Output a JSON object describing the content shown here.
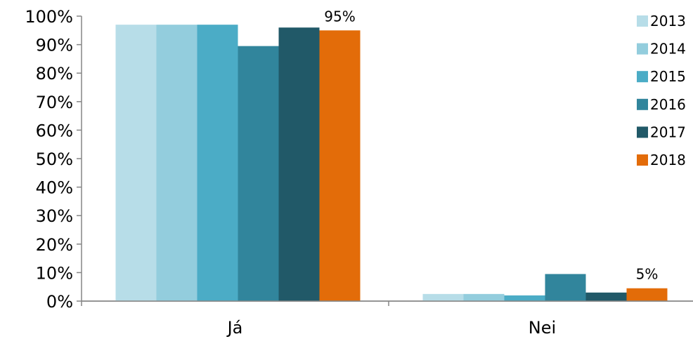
{
  "chart_data": {
    "type": "bar",
    "categories": [
      "Já",
      "Nei"
    ],
    "series": [
      {
        "name": "2013",
        "values": [
          97,
          2.5
        ],
        "color": "#b7dde8"
      },
      {
        "name": "2014",
        "values": [
          97,
          2.5
        ],
        "color": "#93cddd"
      },
      {
        "name": "2015",
        "values": [
          97,
          2
        ],
        "color": "#4bacc6"
      },
      {
        "name": "2016",
        "values": [
          89.5,
          9.5
        ],
        "color": "#31859c"
      },
      {
        "name": "2017",
        "values": [
          96,
          3
        ],
        "color": "#215968"
      },
      {
        "name": "2018",
        "values": [
          95,
          4.5
        ],
        "color": "#e36c09"
      }
    ],
    "data_labels": [
      {
        "series": "2018",
        "category": "Já",
        "text": "95%"
      },
      {
        "series": "2018",
        "category": "Nei",
        "text": "5%"
      }
    ],
    "y_ticks": [
      "0%",
      "10%",
      "20%",
      "30%",
      "40%",
      "50%",
      "60%",
      "70%",
      "80%",
      "90%",
      "100%"
    ],
    "ylim": [
      0,
      100
    ],
    "legend_position": "right",
    "grid": false
  }
}
